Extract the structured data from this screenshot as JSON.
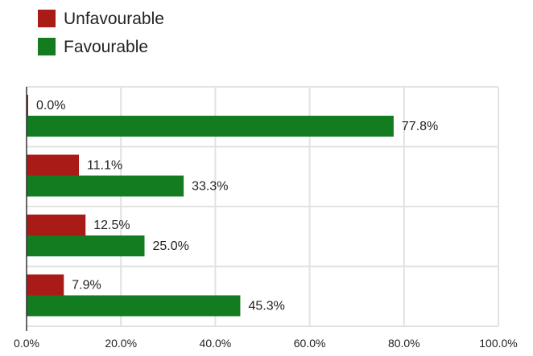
{
  "chart_data": {
    "type": "bar",
    "orientation": "horizontal",
    "title": "",
    "xlabel": "",
    "ylabel": "",
    "categories": [
      "",
      "",
      "",
      ""
    ],
    "series": [
      {
        "name": "Unfavourable",
        "color": "#a81b16",
        "values": [
          0.0,
          11.1,
          12.5,
          7.9
        ]
      },
      {
        "name": "Favourable",
        "color": "#137b20",
        "values": [
          77.8,
          33.3,
          25.0,
          45.3
        ]
      }
    ],
    "value_labels": {
      "Unfavourable": [
        "0.0%",
        "11.1%",
        "12.5%",
        "7.9%"
      ],
      "Favourable": [
        "77.8%",
        "33.3%",
        "25.0%",
        "45.3%"
      ]
    },
    "xlim": [
      0,
      100
    ],
    "xticks": [
      0,
      20,
      40,
      60,
      80,
      100
    ],
    "xtick_labels": [
      "0.0%",
      "20.0%",
      "40.0%",
      "60.0%",
      "80.0%",
      "100.0%"
    ],
    "grid": true,
    "legend_position": "top-left"
  }
}
